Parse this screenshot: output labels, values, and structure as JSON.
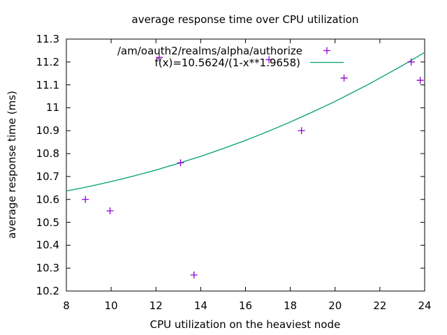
{
  "window": {
    "background": "#ffffff",
    "text_color": "#000000"
  },
  "chart_data": {
    "type": "scatter",
    "title": "average response time over CPU utilization",
    "xlabel": "CPU utilization on the heaviest node",
    "ylabel": "average response time (ms)",
    "xlim": [
      8,
      24
    ],
    "ylim": [
      10.2,
      11.3
    ],
    "x_ticks": [
      8,
      10,
      12,
      14,
      16,
      18,
      20,
      22,
      24
    ],
    "x_tick_labels": [
      "8",
      "10",
      "12",
      "14",
      "16",
      "18",
      "20",
      "22",
      "24"
    ],
    "y_ticks": [
      10.2,
      10.3,
      10.4,
      10.5,
      10.6,
      10.7,
      10.8,
      10.9,
      11,
      11.1,
      11.2,
      11.3
    ],
    "y_tick_labels": [
      "10.2",
      "10.3",
      "10.4",
      "10.5",
      "10.6",
      "10.7",
      "10.8",
      "10.9",
      "11",
      "11.1",
      "11.2",
      "11.3"
    ],
    "grid": false,
    "legend_position": "inside top center-right",
    "series": [
      {
        "name": "/am/oauth2/realms/alpha/authorize",
        "type": "points",
        "marker": "plus",
        "color": "#9400d3",
        "points": [
          [
            8.85,
            10.6
          ],
          [
            9.95,
            10.55
          ],
          [
            12.15,
            11.22
          ],
          [
            13.1,
            10.76
          ],
          [
            13.7,
            10.27
          ],
          [
            17.05,
            11.21
          ],
          [
            18.5,
            10.9
          ],
          [
            20.4,
            11.13
          ],
          [
            23.4,
            11.2
          ],
          [
            23.8,
            11.12
          ]
        ]
      },
      {
        "name": "f(x)=10.5624/(1-x**1.9658)",
        "type": "line",
        "color": "#009e73",
        "x": [
          8,
          8.5,
          9,
          9.5,
          10,
          10.5,
          11,
          11.5,
          12,
          12.5,
          13,
          13.5,
          14,
          14.5,
          15,
          15.5,
          16,
          16.5,
          17,
          17.5,
          18,
          18.5,
          19,
          19.5,
          20,
          20.5,
          21,
          21.5,
          22,
          22.5,
          23,
          23.5,
          24
        ],
        "y": [
          10.637,
          10.646,
          10.656,
          10.667,
          10.678,
          10.69,
          10.702,
          10.715,
          10.728,
          10.743,
          10.757,
          10.773,
          10.788,
          10.805,
          10.822,
          10.84,
          10.858,
          10.877,
          10.897,
          10.917,
          10.938,
          10.96,
          10.982,
          11.005,
          11.028,
          11.053,
          11.078,
          11.103,
          11.13,
          11.157,
          11.184,
          11.213,
          11.242
        ]
      }
    ]
  }
}
